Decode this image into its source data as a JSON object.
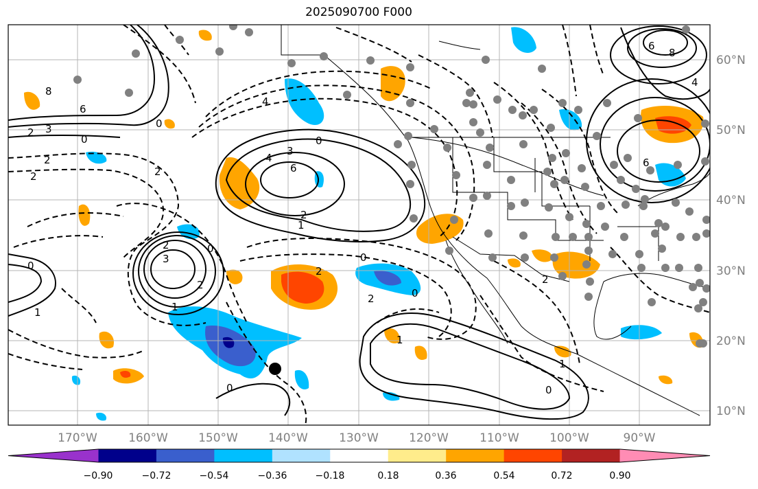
{
  "title": "2025090700 F000",
  "longitude_labels": [
    "170°W",
    "160°W",
    "150°W",
    "140°W",
    "130°W",
    "120°W",
    "110°W",
    "100°W",
    "90°W"
  ],
  "latitude_labels": [
    "60°N",
    "50°N",
    "40°N",
    "30°N",
    "20°N",
    "10°N"
  ],
  "colorbar": {
    "ticks": [
      "−0.90",
      "−0.72",
      "−0.54",
      "−0.36",
      "−0.18",
      "0.18",
      "0.36",
      "0.54",
      "0.72",
      "0.90"
    ],
    "colors": [
      "#9932cc",
      "#00008b",
      "#3a5fcd",
      "#00bfff",
      "#b0e2ff",
      "#ffffff",
      "#ffec8b",
      "#ffa500",
      "#ff4500",
      "#b22222",
      "#ff8cb4"
    ]
  },
  "contour_labels": [
    "8",
    "6",
    "4",
    "3",
    "2",
    "0",
    "2",
    "2",
    "0",
    "4",
    "3",
    "6",
    "0",
    "2",
    "1",
    "3",
    "2",
    "0",
    "0",
    "1",
    "2",
    "0",
    "2",
    "1",
    "1",
    "0",
    "2",
    "4",
    "6",
    "8",
    "6",
    "1",
    "0",
    "2",
    "0",
    "2"
  ],
  "map_colors": {
    "land_line": "#000000",
    "grid": "#b4b4b4",
    "station": "#808080",
    "marker": "#000000"
  }
}
